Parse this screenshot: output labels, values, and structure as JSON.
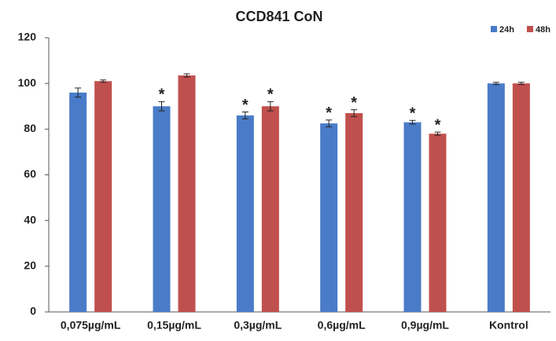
{
  "chart_data": {
    "type": "bar",
    "title": "CCD841 CoN",
    "categories": [
      "0,075µg/mL",
      "0,15µg/mL",
      "0,3µg/mL",
      "0,6µg/mL",
      "0,9µg/mL",
      "Kontrol"
    ],
    "series": [
      {
        "name": "24h",
        "color": "#4a7bc8",
        "values": [
          96,
          90,
          86,
          82.5,
          83,
          100
        ],
        "errors": [
          2,
          2,
          1.5,
          1.5,
          0.8,
          0.5
        ],
        "annotations": [
          null,
          "*",
          "*",
          "*",
          "*",
          null
        ]
      },
      {
        "name": "48h",
        "color": "#c0504d",
        "values": [
          101,
          103.5,
          90,
          87,
          78,
          100
        ],
        "errors": [
          0.5,
          0.7,
          2,
          1.5,
          0.7,
          0.5
        ],
        "annotations": [
          null,
          null,
          "*",
          "*",
          "*",
          null
        ]
      }
    ],
    "ylim": [
      0,
      120
    ],
    "yticks": [
      0,
      20,
      40,
      60,
      80,
      100,
      120
    ],
    "grid": false,
    "legend": "top-right"
  }
}
